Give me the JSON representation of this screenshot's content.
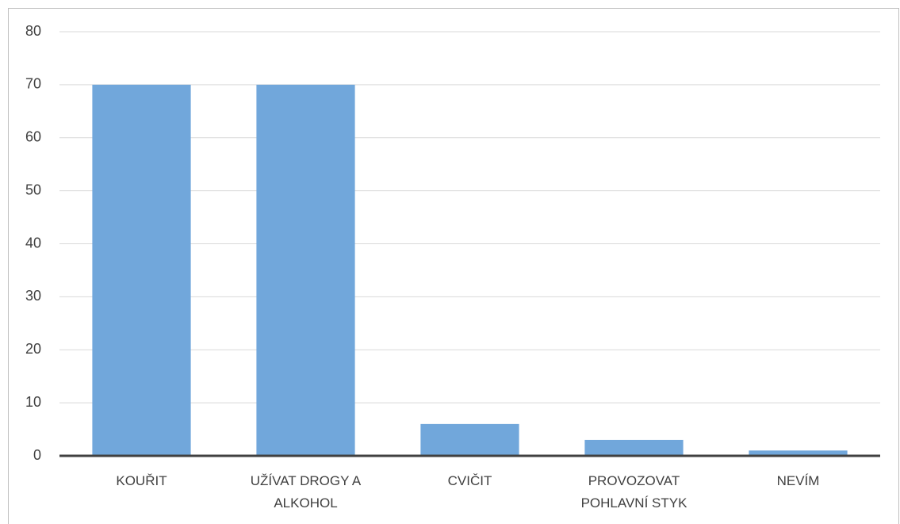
{
  "chart_data": {
    "type": "bar",
    "categories": [
      "KOUŘIT",
      "UŽÍVAT DROGY A ALKOHOL",
      "CVIČIT",
      "PROVOZOVAT POHLAVNÍ STYK",
      "NEVÍM"
    ],
    "values": [
      70,
      70,
      6,
      3,
      1
    ],
    "color": "#71a7db",
    "ylim": [
      0,
      80
    ],
    "yticks": [
      0,
      10,
      20,
      30,
      40,
      50,
      60,
      70,
      80
    ],
    "grid": true
  }
}
